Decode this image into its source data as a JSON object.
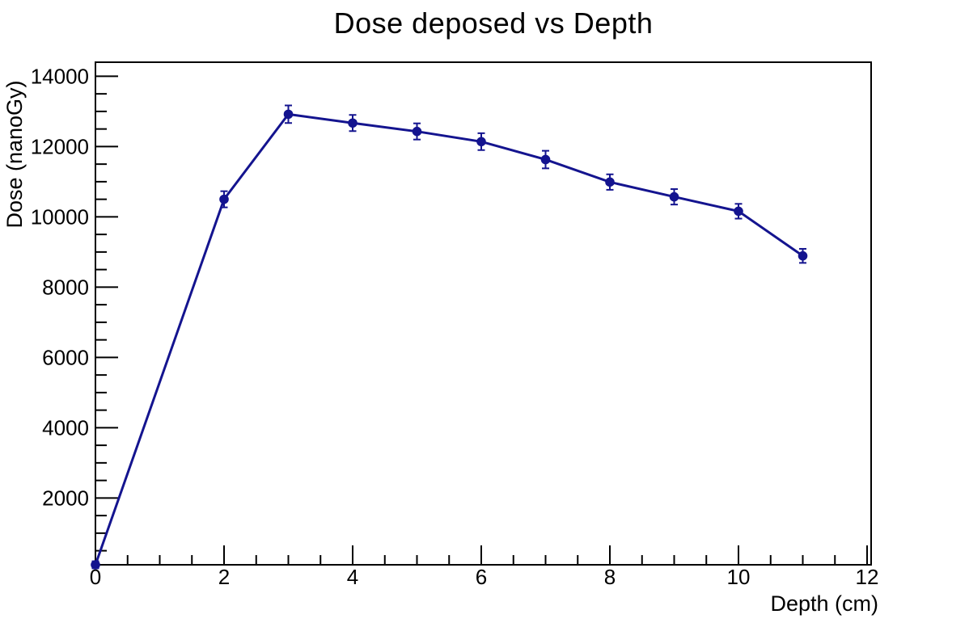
{
  "page": {
    "background": "#ffffff"
  },
  "chart_data": {
    "type": "line",
    "title": "Dose deposed vs Depth",
    "xlabel": "Depth (cm)",
    "ylabel": "Dose (nanoGy)",
    "x": [
      0,
      2,
      3,
      4,
      5,
      6,
      7,
      8,
      9,
      10,
      11
    ],
    "y": [
      100,
      10500,
      12920,
      12670,
      12430,
      12140,
      11630,
      10990,
      10570,
      10160,
      8890
    ],
    "yerr": [
      100,
      230,
      250,
      230,
      230,
      240,
      250,
      220,
      220,
      210,
      200
    ],
    "xlim": [
      0,
      12.06
    ],
    "ylim": [
      100,
      14400
    ],
    "x_major_ticks": [
      0,
      2,
      4,
      6,
      8,
      10,
      12
    ],
    "x_minor_step": 0.5,
    "y_major_ticks": [
      2000,
      4000,
      6000,
      8000,
      10000,
      12000,
      14000
    ],
    "y_minor_step": 500,
    "grid": false,
    "legend": false,
    "marker_style": "filled-circle",
    "error_bars": true,
    "series_color": "#14148f",
    "axis_color": "#000000",
    "text_color": "#000000"
  }
}
